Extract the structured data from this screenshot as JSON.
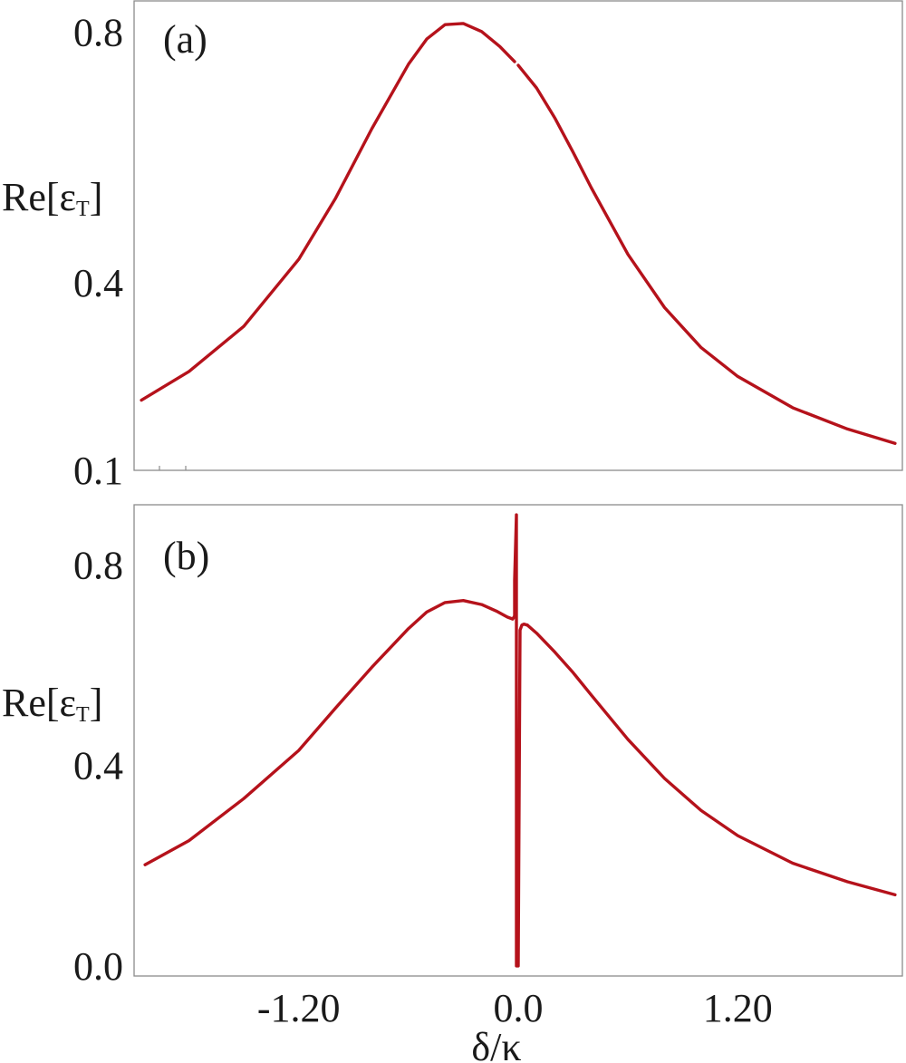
{
  "chart_data": [
    {
      "type": "line",
      "panel_label": "(a)",
      "xlabel": "",
      "ylabel": "Re[εT]",
      "ylabel_main": "Re[ε",
      "ylabel_sub": "T",
      "ylabel_close": "]",
      "xlim": [
        -2.1,
        2.1
      ],
      "ylim": [
        0.1,
        0.85
      ],
      "yticks": [
        {
          "value": 0.8,
          "label": "0.8"
        },
        {
          "value": 0.4,
          "label": "0.4"
        },
        {
          "value": 0.1,
          "label": "0.1"
        }
      ],
      "xticks": [],
      "series": [
        {
          "color": "#b5121b",
          "segments": [
            {
              "x": [
                -2.06,
                -1.8,
                -1.5,
                -1.2,
                -1.0,
                -0.8,
                -0.6,
                -0.5,
                -0.4,
                -0.3,
                -0.2,
                -0.1,
                -0.05,
                -0.02
              ],
              "y": [
                0.212,
                0.258,
                0.33,
                0.437,
                0.534,
                0.646,
                0.749,
                0.789,
                0.812,
                0.814,
                0.801,
                0.777,
                0.762,
                0.753
              ]
            },
            {
              "x": [
                0.0,
                0.1,
                0.2,
                0.3,
                0.4,
                0.6,
                0.8,
                1.0,
                1.2,
                1.5,
                1.8,
                2.06
              ],
              "y": [
                0.747,
                0.711,
                0.663,
                0.608,
                0.551,
                0.445,
                0.36,
                0.296,
                0.25,
                0.2,
                0.166,
                0.143
              ]
            }
          ]
        }
      ]
    },
    {
      "type": "line",
      "panel_label": "(b)",
      "xlabel": "δ/κ",
      "ylabel": "Re[εT]",
      "ylabel_main": "Re[ε",
      "ylabel_sub": "T",
      "ylabel_close": "]",
      "xlim": [
        -2.1,
        2.1
      ],
      "ylim": [
        -0.02,
        0.92
      ],
      "yticks": [
        {
          "value": 0.8,
          "label": "0.8"
        },
        {
          "value": 0.4,
          "label": "0.4"
        },
        {
          "value": 0.0,
          "label": "0.0"
        }
      ],
      "xticks": [
        {
          "value": -1.2,
          "label": "-1.20"
        },
        {
          "value": 0.0,
          "label": "0.0"
        },
        {
          "value": 1.2,
          "label": "1.20"
        }
      ],
      "series": [
        {
          "color": "#b5121b",
          "segments": [
            {
              "x": [
                -2.04,
                -1.8,
                -1.5,
                -1.2,
                -1.0,
                -0.8,
                -0.6,
                -0.5,
                -0.4,
                -0.3,
                -0.2,
                -0.12,
                -0.06,
                -0.03,
                -0.02,
                -0.02,
                -0.01,
                -0.01,
                0.0,
                0.01,
                0.02,
                0.03,
                0.05
              ],
              "y": [
                0.202,
                0.25,
                0.334,
                0.43,
                0.514,
                0.596,
                0.673,
                0.706,
                0.725,
                0.729,
                0.721,
                0.708,
                0.696,
                0.692,
                0.698,
                0.77,
                0.9,
                0.0,
                0.0,
                0.67,
                0.68,
                0.682,
                0.68
              ]
            },
            {
              "x": [
                0.05,
                0.1,
                0.2,
                0.3,
                0.4,
                0.6,
                0.8,
                1.0,
                1.2,
                1.5,
                1.8,
                2.06
              ],
              "y": [
                0.68,
                0.664,
                0.626,
                0.585,
                0.54,
                0.452,
                0.374,
                0.31,
                0.26,
                0.205,
                0.168,
                0.142
              ]
            }
          ]
        }
      ]
    }
  ]
}
